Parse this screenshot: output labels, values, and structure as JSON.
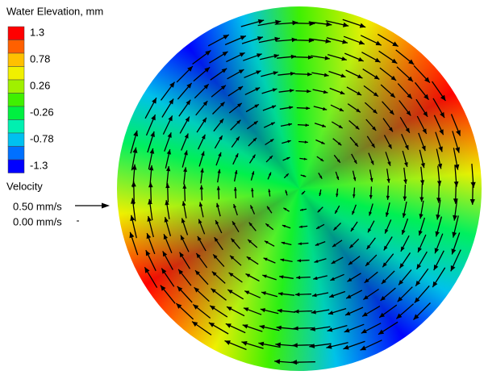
{
  "legend": {
    "title": "Water Elevation, mm",
    "levels": [
      1.3,
      0.78,
      0.26,
      -0.26,
      -0.78,
      -1.3
    ],
    "colors": [
      "#ff0000",
      "#ff6000",
      "#ffc000",
      "#f0f000",
      "#a0f000",
      "#40f000",
      "#00f040",
      "#00f0b0",
      "#00c0f0",
      "#0070ff",
      "#0000ff"
    ]
  },
  "velocity_legend": {
    "title": "Velocity",
    "labels": [
      "0.50 mm/s",
      "0.00 mm/s"
    ]
  }
}
